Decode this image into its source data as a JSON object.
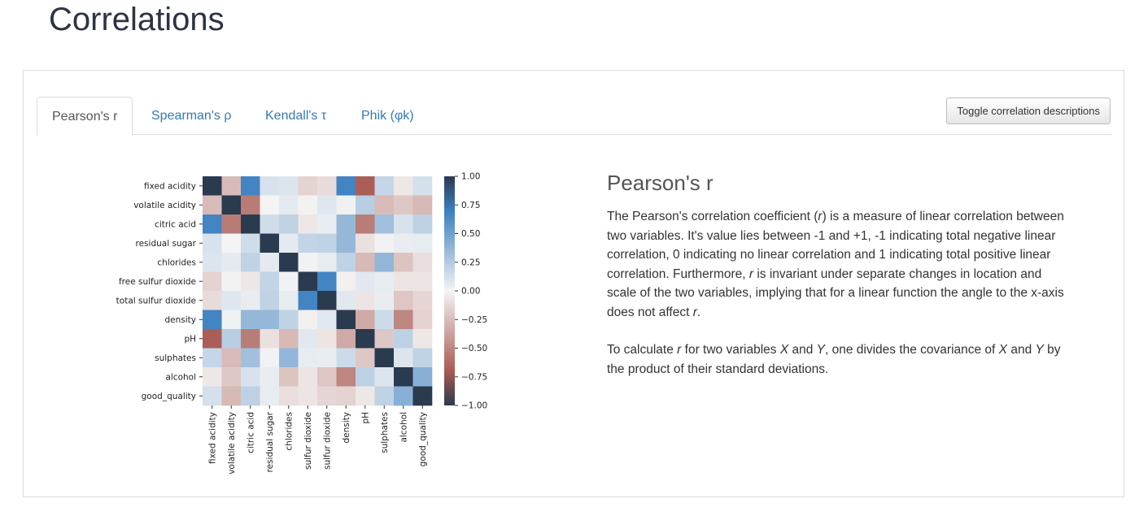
{
  "page": {
    "title": "Correlations"
  },
  "tabs": [
    {
      "label": "Pearson's r",
      "active": true
    },
    {
      "label": "Spearman's ρ",
      "active": false
    },
    {
      "label": "Kendall's τ",
      "active": false
    },
    {
      "label": "Phik (φk)",
      "active": false
    }
  ],
  "toggle_button": {
    "label": "Toggle correlation descriptions"
  },
  "description": {
    "title": "Pearson's r",
    "p1": {
      "a": "The Pearson's correlation coefficient (",
      "r1": "r",
      "b": ") is a measure of linear correlation between two variables. It's value lies between -1 and +1, -1 indicating total negative linear correlation, 0 indicating no linear correlation and 1 indicating total positive linear correlation. Furthermore, ",
      "r2": "r",
      "c": " is invariant under separate changes in location and scale of the two variables, implying that for a linear function the angle to the x-axis does not affect ",
      "r3": "r",
      "d": "."
    },
    "p2": {
      "a": "To calculate ",
      "r": "r",
      "b": " for two variables ",
      "x1": "X",
      "c": " and ",
      "y1": "Y",
      "d": ", one divides the covariance of ",
      "x2": "X",
      "e": " and ",
      "y2": "Y",
      "f": " by the product of their standard deviations."
    }
  },
  "chart_data": {
    "type": "heatmap",
    "title": "",
    "y_labels": [
      "fixed acidity",
      "volatile acidity",
      "citric acid",
      "residual sugar",
      "chlorides",
      "free sulfur dioxide",
      "total sulfur dioxide",
      "density",
      "pH",
      "sulphates",
      "alcohol",
      "good_quality"
    ],
    "x_labels": [
      "fixed acidity",
      "volatile acidity",
      "citric acid",
      "residual sugar",
      "chlorides",
      "sulfur dioxide",
      "sulfur dioxide",
      "density",
      "pH",
      "sulphates",
      "alcohol",
      "good_quality"
    ],
    "colorbar": {
      "ticks": [
        "1.00",
        "0.75",
        "0.50",
        "0.25",
        "0.00",
        "−0.25",
        "−0.50",
        "−0.75",
        "−1.00"
      ],
      "range": [
        -1,
        1
      ]
    },
    "matrix": [
      [
        1.0,
        -0.26,
        0.67,
        0.11,
        0.09,
        -0.15,
        -0.11,
        0.67,
        -0.68,
        0.18,
        -0.06,
        0.12
      ],
      [
        -0.26,
        1.0,
        -0.55,
        0.0,
        0.06,
        -0.01,
        0.08,
        0.02,
        0.23,
        -0.26,
        -0.2,
        -0.27
      ],
      [
        0.67,
        -0.55,
        1.0,
        0.14,
        0.2,
        -0.06,
        0.04,
        0.36,
        -0.54,
        0.31,
        0.11,
        0.21
      ],
      [
        0.11,
        0.0,
        0.14,
        1.0,
        0.06,
        0.19,
        0.2,
        0.36,
        -0.09,
        0.01,
        0.04,
        0.05
      ],
      [
        0.09,
        0.06,
        0.2,
        0.06,
        1.0,
        0.01,
        0.05,
        0.2,
        -0.27,
        0.37,
        -0.22,
        -0.1
      ],
      [
        -0.15,
        -0.01,
        -0.06,
        0.19,
        0.01,
        1.0,
        0.67,
        -0.02,
        0.07,
        0.05,
        -0.07,
        -0.07
      ],
      [
        -0.11,
        0.08,
        0.04,
        0.2,
        0.05,
        0.67,
        1.0,
        0.07,
        -0.07,
        0.04,
        -0.21,
        -0.14
      ],
      [
        0.67,
        0.02,
        0.36,
        0.36,
        0.2,
        -0.02,
        0.07,
        1.0,
        -0.34,
        0.15,
        -0.5,
        -0.15
      ],
      [
        -0.68,
        0.23,
        -0.54,
        -0.09,
        -0.27,
        0.07,
        -0.07,
        -0.34,
        1.0,
        -0.2,
        0.21,
        -0.06
      ],
      [
        0.18,
        -0.26,
        0.31,
        0.01,
        0.37,
        0.05,
        0.04,
        0.15,
        -0.2,
        1.0,
        0.09,
        0.2
      ],
      [
        -0.06,
        -0.2,
        0.11,
        0.04,
        -0.22,
        -0.07,
        -0.21,
        -0.5,
        0.21,
        0.09,
        1.0,
        0.41
      ],
      [
        0.12,
        -0.27,
        0.21,
        0.05,
        -0.1,
        -0.07,
        -0.14,
        -0.15,
        -0.06,
        0.2,
        0.41,
        1.0
      ]
    ],
    "colors": {
      "pos": "#3b7fc0",
      "neg": "#a85a52",
      "mid": "#f4f4f4",
      "diag": "#2a3a4f"
    }
  }
}
